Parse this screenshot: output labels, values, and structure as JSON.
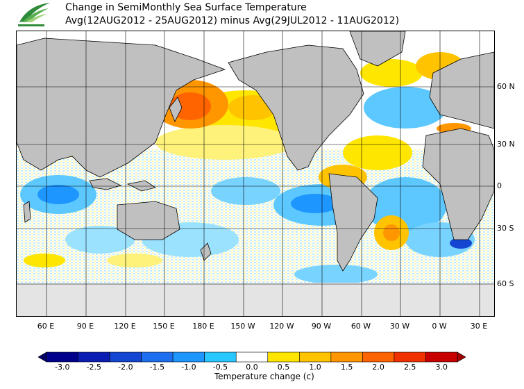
{
  "title": {
    "line1": "Change in SemiMonthly Sea Surface Temperature",
    "line2": "Avg(12AUG2012 - 25AUG2012) minus Avg(29JUL2012 - 11AUG2012)"
  },
  "lat_labels": [
    "60 N",
    "30 N",
    "0",
    "30 S",
    "60 S"
  ],
  "lon_labels": [
    "60 E",
    "90 E",
    "120 E",
    "150 E",
    "180 E",
    "150 W",
    "120 W",
    "90 W",
    "60 W",
    "30 W",
    "0 W",
    "30 E"
  ],
  "colorbar": {
    "title": "Temperature change  (c)",
    "ticks": [
      "-3.0",
      "-2.5",
      "-2.0",
      "-1.5",
      "-1.0",
      "-0.5",
      "0.0",
      "0.5",
      "1.0",
      "1.5",
      "2.0",
      "2.5",
      "3.0"
    ],
    "colors": [
      "#00008c",
      "#0a1eb4",
      "#1446d2",
      "#1e6ef0",
      "#1e96ff",
      "#28c8ff",
      "#ffffff",
      "#ffe600",
      "#ffc300",
      "#ff9600",
      "#ff6400",
      "#f03200",
      "#c80000"
    ],
    "end_low": "#000064",
    "end_high": "#a00000"
  },
  "map": {
    "land_color": "#c0c0c0",
    "ice_color": "#e4e4e4",
    "grid_color": "#000000"
  }
}
